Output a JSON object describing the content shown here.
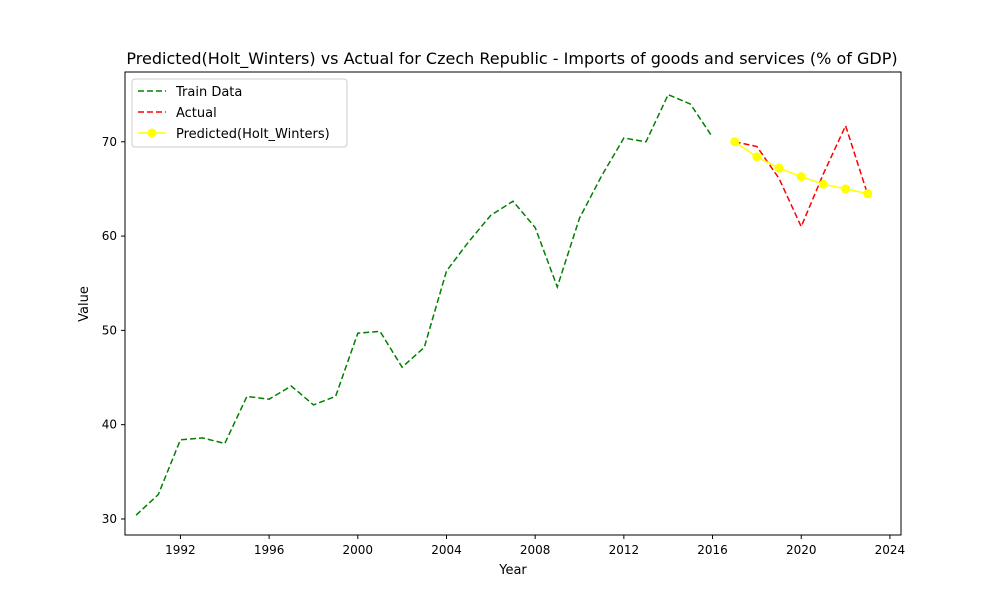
{
  "chart_data": {
    "type": "line",
    "title": "Predicted(Holt_Winters) vs Actual for Czech Republic - Imports of goods and services (% of GDP)",
    "xlabel": "Year",
    "ylabel": "Value",
    "xlim": [
      1989.5,
      2024.5
    ],
    "ylim": [
      28.3,
      77.4
    ],
    "xticks": [
      1992,
      1996,
      2000,
      2004,
      2008,
      2012,
      2016,
      2020,
      2024
    ],
    "yticks": [
      30,
      40,
      50,
      60,
      70
    ],
    "grid": false,
    "legend_position": "upper-left",
    "series": [
      {
        "name": "Train Data",
        "color": "#008000",
        "style": "dashed",
        "marker": "none",
        "x": [
          1990,
          1991,
          1992,
          1993,
          1994,
          1995,
          1996,
          1997,
          1998,
          1999,
          2000,
          2001,
          2002,
          2003,
          2004,
          2005,
          2006,
          2007,
          2008,
          2009,
          2010,
          2011,
          2012,
          2013,
          2014,
          2015,
          2016
        ],
        "y": [
          30.4,
          32.6,
          38.4,
          38.6,
          38.0,
          43.0,
          42.7,
          44.1,
          42.1,
          43.0,
          49.7,
          49.9,
          46.1,
          48.2,
          56.3,
          59.4,
          62.2,
          63.7,
          60.9,
          54.6,
          61.9,
          66.4,
          70.4,
          70.0,
          75.0,
          74.0,
          70.5
        ]
      },
      {
        "name": "Actual",
        "color": "#ff0000",
        "style": "dashed",
        "marker": "none",
        "x": [
          2017,
          2018,
          2019,
          2020,
          2021,
          2022,
          2023
        ],
        "y": [
          70.0,
          69.5,
          66.1,
          61.0,
          66.6,
          71.7,
          64.4
        ]
      },
      {
        "name": "Predicted(Holt_Winters)",
        "color": "#ffff00",
        "style": "solid",
        "marker": "circle",
        "x": [
          2017,
          2018,
          2019,
          2020,
          2021,
          2022,
          2023
        ],
        "y": [
          70.0,
          68.4,
          67.2,
          66.3,
          65.5,
          65.0,
          64.5
        ]
      }
    ]
  }
}
